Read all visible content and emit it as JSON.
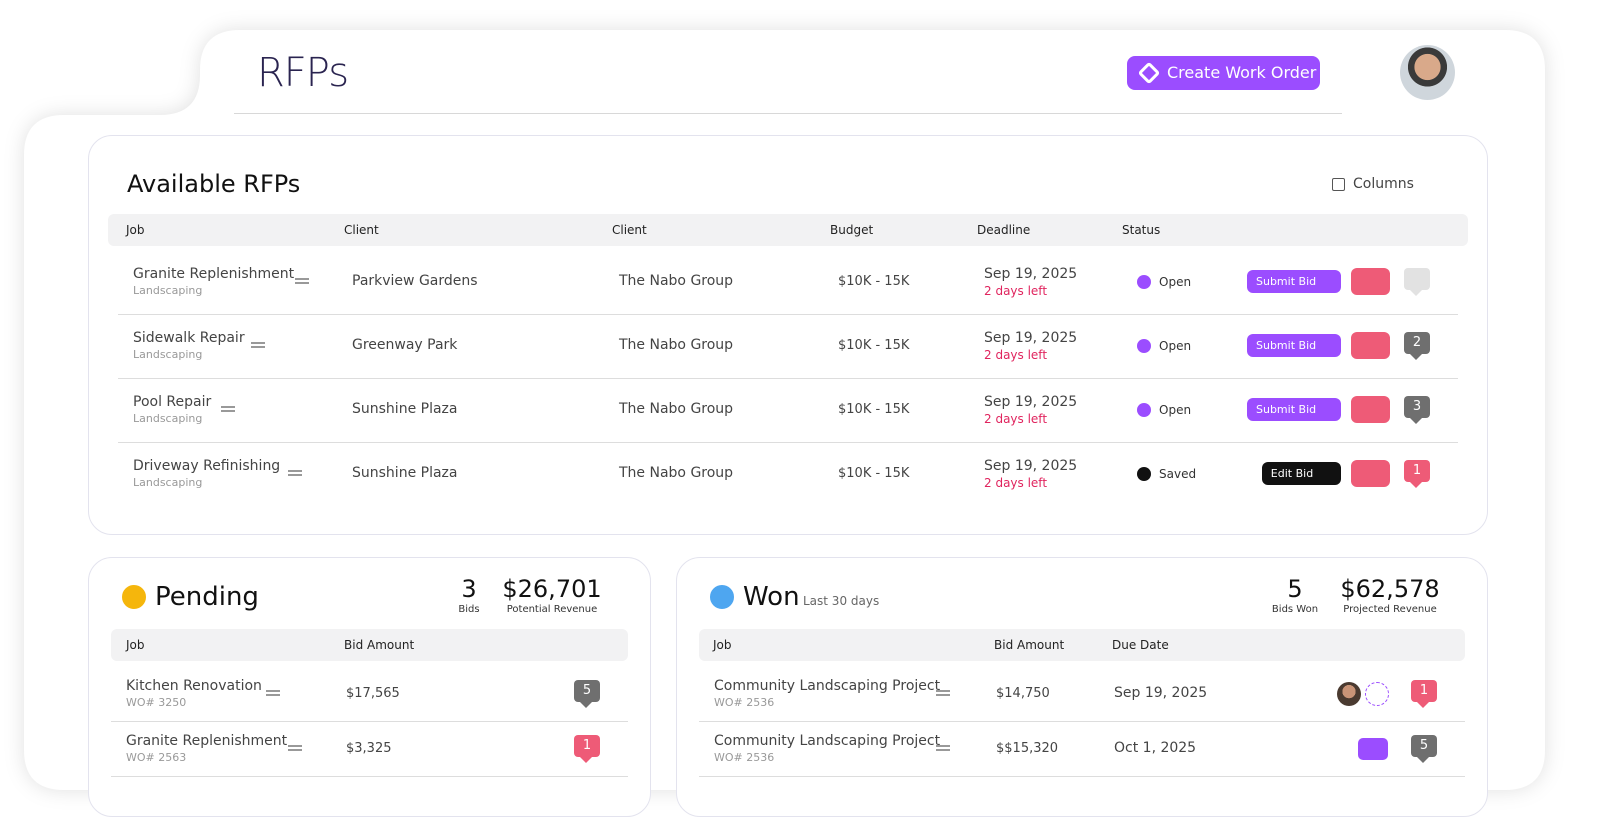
{
  "header": {
    "title": "RFPs",
    "create_button": "Create Work Order"
  },
  "available": {
    "title": "Available RFPs",
    "columns_button": "Columns",
    "headers": [
      "Job",
      "Client",
      "Client",
      "Budget",
      "Deadline",
      "Status"
    ],
    "rows": [
      {
        "job": "Granite Replenishment",
        "category": "Landscaping",
        "client": "Parkview Gardens",
        "client2": "The Nabo Group",
        "budget": "$10K - 15K",
        "deadline": "Sep 19, 2025",
        "due": "2 days left",
        "status": "Open",
        "status_color": "#9b4dff",
        "action": "Submit Bid",
        "action_color": "#9b4dff",
        "comment_color": "#e2e2e2"
      },
      {
        "job": "Sidewalk Repair",
        "category": "Landscaping",
        "client": "Greenway Park",
        "client2": "The Nabo Group",
        "budget": "$10K - 15K",
        "deadline": "Sep 19, 2025",
        "due": "2 days left",
        "status": "Open",
        "status_color": "#9b4dff",
        "action": "Submit Bid",
        "action_color": "#9b4dff",
        "comments": 2,
        "comment_color": "#6f6f6f"
      },
      {
        "job": "Pool Repair",
        "category": "Landscaping",
        "client": "Sunshine Plaza",
        "client2": "The Nabo Group",
        "budget": "$10K - 15K",
        "deadline": "Sep 19, 2025",
        "due": "2 days left",
        "status": "Open",
        "status_color": "#9b4dff",
        "action": "Submit Bid",
        "action_color": "#9b4dff",
        "comments": 3,
        "comment_color": "#6f6f6f"
      },
      {
        "job": "Driveway Refinishing",
        "category": "Landscaping",
        "client": "Sunshine Plaza",
        "client2": "The Nabo Group",
        "budget": "$10K - 15K",
        "deadline": "Sep 19, 2025",
        "due": "2 days left",
        "status": "Saved",
        "status_color": "#111111",
        "action": "Edit Bid",
        "action_color": "#111111",
        "comments": 1,
        "comment_color": "#ee5b77"
      }
    ]
  },
  "pending": {
    "title": "Pending",
    "stats": [
      {
        "value": "3",
        "label": "Bids"
      },
      {
        "value": "$26,701",
        "label": "Potential Revenue"
      }
    ],
    "headers": [
      "Job",
      "Bid Amount"
    ],
    "rows": [
      {
        "job": "Kitchen Renovation",
        "wo": "WO# 3250",
        "amount": "$17,565",
        "comments": 5,
        "comment_color": "#6f6f6f"
      },
      {
        "job": "Granite Replenishment",
        "wo": "WO# 2563",
        "amount": "$3,325",
        "comments": 1,
        "comment_color": "#ee5b77"
      }
    ]
  },
  "won": {
    "title": "Won",
    "subtitle": "Last 30 days",
    "stats": [
      {
        "value": "5",
        "label": "Bids Won"
      },
      {
        "value": "$62,578",
        "label": "Projected Revenue"
      }
    ],
    "headers": [
      "Job",
      "Bid Amount",
      "Due Date"
    ],
    "rows": [
      {
        "job": "Community Landscaping Project",
        "wo": "WO# 2536",
        "amount": "$14,750",
        "due": "Sep 19, 2025",
        "comments": 1,
        "comment_color": "#ee5b77"
      },
      {
        "job": "Community Landscaping Project",
        "wo": "WO# 2536",
        "amount": "$$15,320",
        "due": "Oct 1, 2025",
        "comments": 5,
        "comment_color": "#6f6f6f"
      }
    ]
  }
}
